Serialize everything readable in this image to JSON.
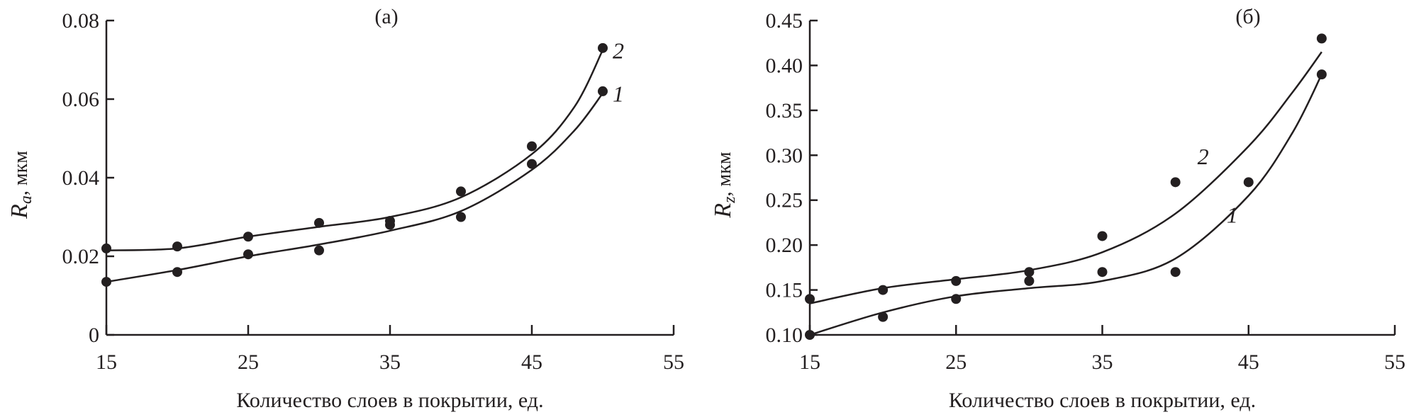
{
  "chart_data": [
    {
      "type": "line",
      "panel_label": "(а)",
      "xlabel": "Количество слоев в покрытии, ед.",
      "ylabel_symbol": "R",
      "ylabel_sub": "a",
      "ylabel_unit": ", мкм",
      "xlim": [
        15,
        55
      ],
      "ylim": [
        0,
        0.08
      ],
      "xticks": [
        "15",
        "25",
        "35",
        "45",
        "55"
      ],
      "xtick_values": [
        15,
        25,
        35,
        45,
        55
      ],
      "yticks": [
        "0",
        "0.02",
        "0.04",
        "0.06",
        "0.08"
      ],
      "ytick_values": [
        0,
        0.02,
        0.04,
        0.06,
        0.08
      ],
      "grid": false,
      "series": [
        {
          "name": "1",
          "x": [
            15,
            20,
            25,
            30,
            35,
            40,
            45,
            50
          ],
          "values": [
            0.0135,
            0.016,
            0.0205,
            0.0215,
            0.028,
            0.03,
            0.0435,
            0.062
          ],
          "fit_x": [
            15,
            20,
            25,
            30,
            35,
            40,
            45,
            48,
            50
          ],
          "fit": [
            0.0135,
            0.0165,
            0.02,
            0.023,
            0.0265,
            0.0315,
            0.042,
            0.052,
            0.0615
          ]
        },
        {
          "name": "2",
          "x": [
            15,
            20,
            25,
            30,
            35,
            40,
            45,
            50
          ],
          "values": [
            0.022,
            0.0225,
            0.025,
            0.0285,
            0.029,
            0.0365,
            0.048,
            0.073
          ],
          "fit_x": [
            15,
            20,
            25,
            30,
            35,
            40,
            45,
            48,
            50
          ],
          "fit": [
            0.0215,
            0.022,
            0.025,
            0.0275,
            0.03,
            0.035,
            0.046,
            0.058,
            0.0725
          ]
        }
      ]
    },
    {
      "type": "line",
      "panel_label": "(б)",
      "xlabel": "Количество слоев в покрытии, ед.",
      "ylabel_symbol": "R",
      "ylabel_sub": "z",
      "ylabel_unit": ", мкм",
      "xlim": [
        15,
        55
      ],
      "ylim": [
        0.1,
        0.45
      ],
      "xticks": [
        "15",
        "25",
        "35",
        "45",
        "55"
      ],
      "xtick_values": [
        15,
        25,
        35,
        45,
        55
      ],
      "yticks": [
        "0.10",
        "0.15",
        "0.20",
        "0.25",
        "0.30",
        "0.35",
        "0.40",
        "0.45"
      ],
      "ytick_values": [
        0.1,
        0.15,
        0.2,
        0.25,
        0.3,
        0.35,
        0.4,
        0.45
      ],
      "grid": false,
      "series": [
        {
          "name": "1",
          "x": [
            15,
            20,
            25,
            30,
            35,
            40,
            45,
            50
          ],
          "values": [
            0.1,
            0.12,
            0.14,
            0.16,
            0.17,
            0.17,
            0.27,
            0.39
          ],
          "fit_x": [
            15,
            20,
            25,
            30,
            35,
            40,
            45,
            48,
            50
          ],
          "fit": [
            0.1,
            0.125,
            0.143,
            0.152,
            0.16,
            0.185,
            0.255,
            0.325,
            0.39
          ]
        },
        {
          "name": "2",
          "x": [
            15,
            20,
            25,
            30,
            35,
            40,
            50
          ],
          "values": [
            0.14,
            0.15,
            0.16,
            0.17,
            0.21,
            0.27,
            0.43
          ],
          "fit_x": [
            15,
            20,
            25,
            30,
            35,
            40,
            45,
            48,
            50
          ],
          "fit": [
            0.135,
            0.152,
            0.162,
            0.172,
            0.192,
            0.235,
            0.31,
            0.37,
            0.415
          ]
        }
      ]
    }
  ]
}
